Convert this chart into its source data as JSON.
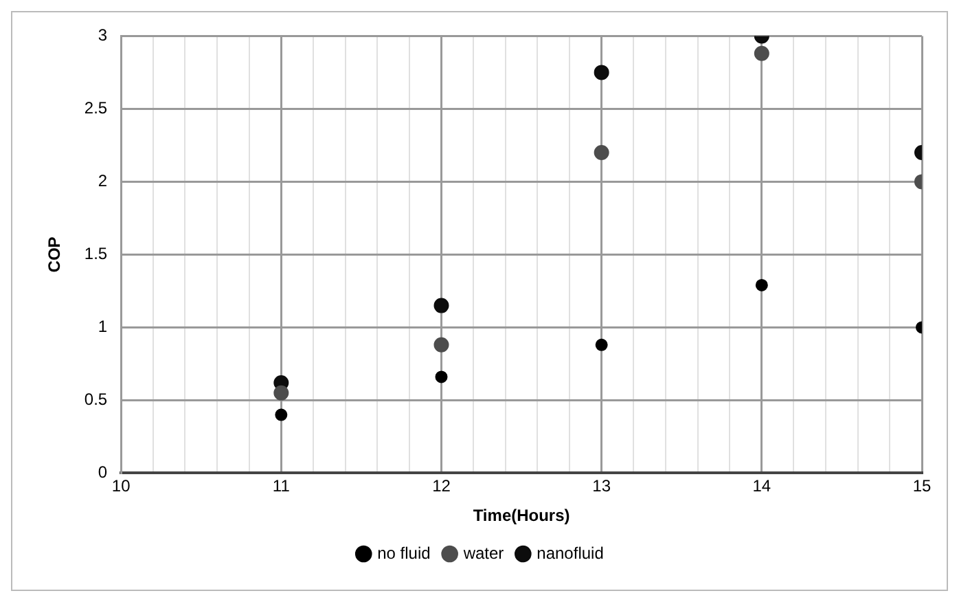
{
  "chart_data": {
    "type": "scatter",
    "xlabel": "Time(Hours)",
    "ylabel": "COP",
    "x": [
      11,
      12,
      13,
      14,
      15
    ],
    "series": [
      {
        "name": "no fluid",
        "color": "#000000",
        "values": [
          0.4,
          0.66,
          0.88,
          1.29,
          1.0
        ]
      },
      {
        "name": "water",
        "color": "#4d4d4d",
        "values": [
          0.55,
          0.88,
          2.2,
          2.88,
          2.0
        ]
      },
      {
        "name": "nanofluid",
        "color": "#0d0d0d",
        "values": [
          0.62,
          1.15,
          2.75,
          3.0,
          2.2
        ]
      }
    ],
    "xlim": [
      10,
      15
    ],
    "ylim": [
      0,
      3
    ],
    "xticks": [
      10,
      {
        "value": 10.2,
        "label": null
      },
      {
        "value": 10.4,
        "label": null
      },
      {
        "value": 10.6,
        "label": null
      },
      {
        "value": 10.8,
        "label": null
      },
      11,
      {
        "value": 11.2,
        "label": null
      },
      {
        "value": 11.4,
        "label": null
      },
      {
        "value": 11.6,
        "label": null
      },
      {
        "value": 11.8,
        "label": null
      },
      12,
      {
        "value": 12.2,
        "label": null
      },
      {
        "value": 12.4,
        "label": null
      },
      {
        "value": 12.6,
        "label": null
      },
      {
        "value": 12.8,
        "label": null
      },
      13,
      {
        "value": 13.2,
        "label": null
      },
      {
        "value": 13.4,
        "label": null
      },
      {
        "value": 13.6,
        "label": null
      },
      {
        "value": 13.8,
        "label": null
      },
      14,
      {
        "value": 14.2,
        "label": null
      },
      {
        "value": 14.4,
        "label": null
      },
      {
        "value": 14.6,
        "label": null
      },
      {
        "value": 14.8,
        "label": null
      },
      15
    ],
    "yticks": [
      0,
      0.5,
      1,
      1.5,
      2,
      2.5,
      3
    ],
    "grid": true,
    "legend": "bottom",
    "marker": "circle"
  }
}
